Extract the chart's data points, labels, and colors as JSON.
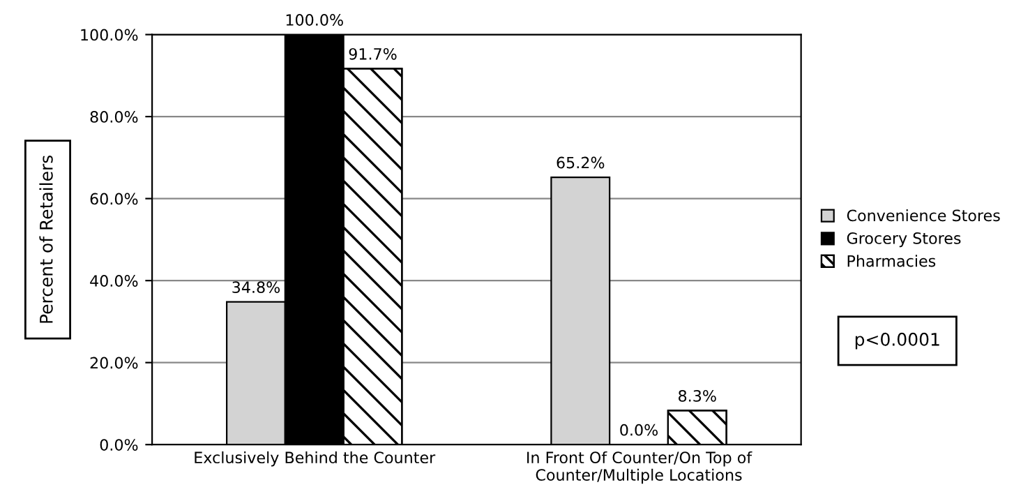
{
  "chart_data": {
    "type": "bar",
    "ylabel": "Percent of Retailers",
    "categories": [
      "Exclusively Behind the Counter",
      "In Front Of Counter/On Top of\nCounter/Multiple Locations"
    ],
    "series": [
      {
        "name": "Convenience Stores",
        "color": "#d3d3d3",
        "values": [
          34.8,
          65.2
        ],
        "value_labels": [
          "34.8%",
          "65.2%"
        ]
      },
      {
        "name": "Grocery Stores",
        "color": "#000000",
        "values": [
          100.0,
          0.0
        ],
        "value_labels": [
          "100.0%",
          "0.0%"
        ]
      },
      {
        "name": "Pharmacies",
        "color": "#ffffff",
        "values": [
          91.7,
          8.3
        ],
        "value_labels": [
          "91.7%",
          "8.3%"
        ]
      }
    ],
    "ylim": [
      0,
      100
    ],
    "yticks": [
      {
        "value": 0,
        "label": "0.0%"
      },
      {
        "value": 20,
        "label": "20.0%"
      },
      {
        "value": 40,
        "label": "40.0%"
      },
      {
        "value": 60,
        "label": "60.0%"
      },
      {
        "value": 80,
        "label": "80.0%"
      },
      {
        "value": 100,
        "label": "100.0%"
      }
    ],
    "grid": "y",
    "legend": "right",
    "annotations": [
      "p<0.0001"
    ]
  }
}
